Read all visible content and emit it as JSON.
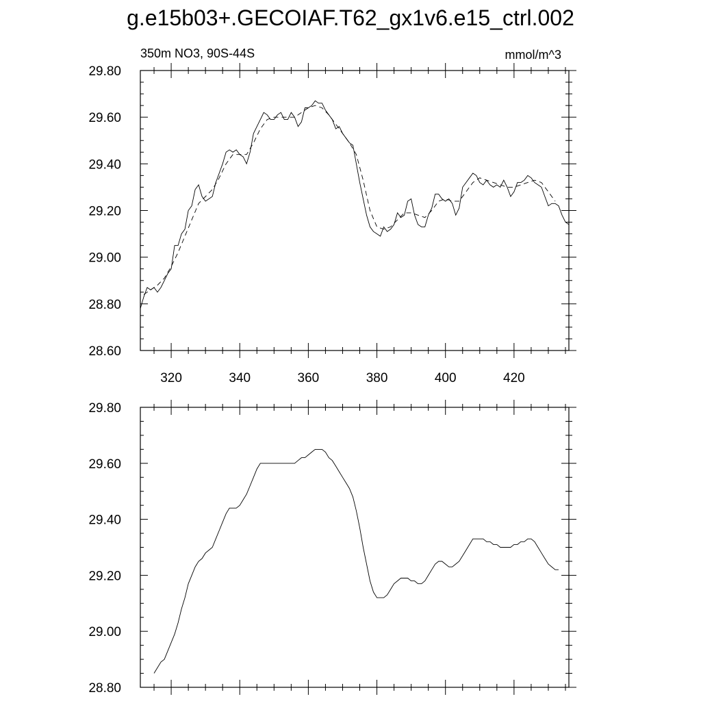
{
  "title": "g.e15b03+.GECOIAF.T62_gx1v6.e15_ctrl.002",
  "chart_data": [
    {
      "type": "line",
      "left_label": "350m NO3, 90S-44S",
      "right_label": "mmol/m^3",
      "xlim": [
        311,
        436
      ],
      "ylim": [
        28.6,
        29.8
      ],
      "xticks": [
        320,
        340,
        360,
        380,
        400,
        420
      ],
      "xtick_labels": [
        "320",
        "340",
        "360",
        "380",
        "400",
        "420"
      ],
      "yticks": [
        28.6,
        28.8,
        29.0,
        29.2,
        29.4,
        29.6,
        29.8
      ],
      "ytick_labels": [
        "28.60",
        "28.80",
        "29.00",
        "29.20",
        "29.40",
        "29.60",
        "29.80"
      ],
      "grid": false,
      "series": [
        {
          "style": "solid",
          "color": "#000000",
          "x": [
            311,
            312,
            313,
            314,
            315,
            316,
            317,
            318,
            319,
            320,
            321,
            322,
            323,
            324,
            325,
            326,
            327,
            328,
            329,
            330,
            331,
            332,
            333,
            334,
            335,
            336,
            337,
            338,
            339,
            340,
            341,
            342,
            343,
            344,
            345,
            346,
            347,
            348,
            349,
            350,
            351,
            352,
            353,
            354,
            355,
            356,
            357,
            358,
            359,
            360,
            361,
            362,
            363,
            364,
            365,
            366,
            367,
            368,
            369,
            370,
            371,
            372,
            373,
            374,
            375,
            376,
            377,
            378,
            379,
            380,
            381,
            382,
            383,
            384,
            385,
            386,
            387,
            388,
            389,
            390,
            391,
            392,
            393,
            394,
            395,
            396,
            397,
            398,
            399,
            400,
            401,
            402,
            403,
            404,
            405,
            406,
            407,
            408,
            409,
            410,
            411,
            412,
            413,
            414,
            415,
            416,
            417,
            418,
            419,
            420,
            421,
            422,
            423,
            424,
            425,
            426,
            427,
            428,
            429,
            430,
            431,
            432,
            433,
            434,
            435,
            436
          ],
          "y": [
            28.78,
            28.83,
            28.87,
            28.86,
            28.87,
            28.85,
            28.87,
            28.9,
            28.93,
            28.95,
            29.05,
            29.05,
            29.1,
            29.12,
            29.2,
            29.22,
            29.29,
            29.31,
            29.26,
            29.24,
            29.25,
            29.26,
            29.32,
            29.36,
            29.4,
            29.45,
            29.46,
            29.45,
            29.46,
            29.44,
            29.43,
            29.4,
            29.45,
            29.53,
            29.56,
            29.59,
            29.62,
            29.61,
            29.59,
            29.59,
            29.61,
            29.62,
            29.59,
            29.59,
            29.62,
            29.6,
            29.56,
            29.58,
            29.64,
            29.64,
            29.65,
            29.67,
            29.66,
            29.66,
            29.63,
            29.61,
            29.59,
            29.55,
            29.56,
            29.53,
            29.51,
            29.49,
            29.48,
            29.4,
            29.32,
            29.25,
            29.18,
            29.13,
            29.11,
            29.1,
            29.09,
            29.13,
            29.11,
            29.12,
            29.14,
            29.19,
            29.17,
            29.18,
            29.24,
            29.25,
            29.18,
            29.14,
            29.13,
            29.13,
            29.18,
            29.21,
            29.27,
            29.27,
            29.25,
            29.24,
            29.25,
            29.23,
            29.18,
            29.21,
            29.3,
            29.32,
            29.34,
            29.36,
            29.35,
            29.32,
            29.31,
            29.33,
            29.31,
            29.3,
            29.31,
            29.3,
            29.33,
            29.3,
            29.26,
            29.28,
            29.32,
            29.32,
            29.33,
            29.35,
            29.34,
            29.32,
            29.31,
            29.3,
            29.26,
            29.22,
            29.23,
            29.23,
            29.22,
            29.18,
            29.15,
            29.14
          ]
        },
        {
          "style": "dashed",
          "color": "#000000",
          "x": [
            312,
            314,
            316,
            318,
            320,
            322,
            324,
            326,
            328,
            330,
            332,
            334,
            336,
            338,
            340,
            342,
            344,
            346,
            348,
            350,
            352,
            354,
            356,
            358,
            360,
            362,
            364,
            366,
            368,
            370,
            372,
            374,
            376,
            378,
            380,
            382,
            384,
            386,
            388,
            390,
            392,
            394,
            396,
            398,
            400,
            402,
            404,
            406,
            408,
            410,
            412,
            414,
            416,
            418,
            420,
            422,
            424,
            426,
            428,
            430,
            432
          ],
          "y": [
            28.84,
            28.86,
            28.88,
            28.91,
            28.96,
            29.02,
            29.09,
            29.16,
            29.23,
            29.26,
            29.29,
            29.34,
            29.4,
            29.44,
            29.44,
            29.44,
            29.49,
            29.55,
            29.59,
            29.6,
            29.6,
            29.6,
            29.6,
            29.62,
            29.64,
            29.65,
            29.64,
            29.61,
            29.57,
            29.53,
            29.49,
            29.44,
            29.33,
            29.2,
            29.13,
            29.12,
            29.13,
            29.16,
            29.19,
            29.19,
            29.18,
            29.17,
            29.2,
            29.24,
            29.25,
            29.24,
            29.24,
            29.28,
            29.32,
            29.34,
            29.33,
            29.32,
            29.31,
            29.3,
            29.3,
            29.31,
            29.32,
            29.33,
            29.32,
            29.28,
            29.24
          ]
        }
      ]
    },
    {
      "type": "line",
      "xlim": [
        311,
        436
      ],
      "ylim": [
        28.8,
        29.8
      ],
      "xticks": [
        320,
        340,
        360,
        380,
        400,
        420
      ],
      "xtick_labels": [],
      "yticks": [
        28.8,
        29.0,
        29.2,
        29.4,
        29.6,
        29.8
      ],
      "ytick_labels": [
        "28.80",
        "29.00",
        "29.20",
        "29.40",
        "29.60",
        "29.80"
      ],
      "grid": false,
      "series": [
        {
          "style": "solid",
          "color": "#000000",
          "x": [
            315,
            316,
            317,
            318,
            319,
            320,
            321,
            322,
            323,
            324,
            325,
            326,
            327,
            328,
            329,
            330,
            331,
            332,
            333,
            334,
            335,
            336,
            337,
            338,
            339,
            340,
            341,
            342,
            343,
            344,
            345,
            346,
            347,
            348,
            349,
            350,
            351,
            352,
            353,
            354,
            355,
            356,
            357,
            358,
            359,
            360,
            361,
            362,
            363,
            364,
            365,
            366,
            367,
            368,
            369,
            370,
            371,
            372,
            373,
            374,
            375,
            376,
            377,
            378,
            379,
            380,
            381,
            382,
            383,
            384,
            385,
            386,
            387,
            388,
            389,
            390,
            391,
            392,
            393,
            394,
            395,
            396,
            397,
            398,
            399,
            400,
            401,
            402,
            403,
            404,
            405,
            406,
            407,
            408,
            409,
            410,
            411,
            412,
            413,
            414,
            415,
            416,
            417,
            418,
            419,
            420,
            421,
            422,
            423,
            424,
            425,
            426,
            427,
            428,
            429,
            430,
            431,
            432,
            433
          ],
          "y": [
            28.85,
            28.87,
            28.89,
            28.9,
            28.93,
            28.96,
            28.99,
            29.03,
            29.08,
            29.12,
            29.17,
            29.2,
            29.23,
            29.25,
            29.26,
            29.28,
            29.29,
            29.3,
            29.33,
            29.36,
            29.39,
            29.42,
            29.44,
            29.44,
            29.44,
            29.45,
            29.47,
            29.49,
            29.52,
            29.55,
            29.58,
            29.6,
            29.6,
            29.6,
            29.6,
            29.6,
            29.6,
            29.6,
            29.6,
            29.6,
            29.6,
            29.6,
            29.61,
            29.62,
            29.62,
            29.63,
            29.64,
            29.65,
            29.65,
            29.65,
            29.64,
            29.62,
            29.61,
            29.59,
            29.57,
            29.55,
            29.53,
            29.51,
            29.48,
            29.43,
            29.37,
            29.3,
            29.24,
            29.18,
            29.14,
            29.12,
            29.12,
            29.12,
            29.13,
            29.15,
            29.17,
            29.18,
            29.19,
            29.19,
            29.19,
            29.18,
            29.18,
            29.17,
            29.17,
            29.18,
            29.2,
            29.22,
            29.24,
            29.25,
            29.25,
            29.24,
            29.23,
            29.23,
            29.24,
            29.25,
            29.27,
            29.29,
            29.31,
            29.33,
            29.33,
            29.33,
            29.33,
            29.32,
            29.32,
            29.31,
            29.31,
            29.3,
            29.3,
            29.3,
            29.3,
            29.31,
            29.31,
            29.32,
            29.32,
            29.33,
            29.33,
            29.32,
            29.3,
            29.28,
            29.26,
            29.24,
            29.23,
            29.22,
            29.22
          ]
        }
      ]
    }
  ]
}
